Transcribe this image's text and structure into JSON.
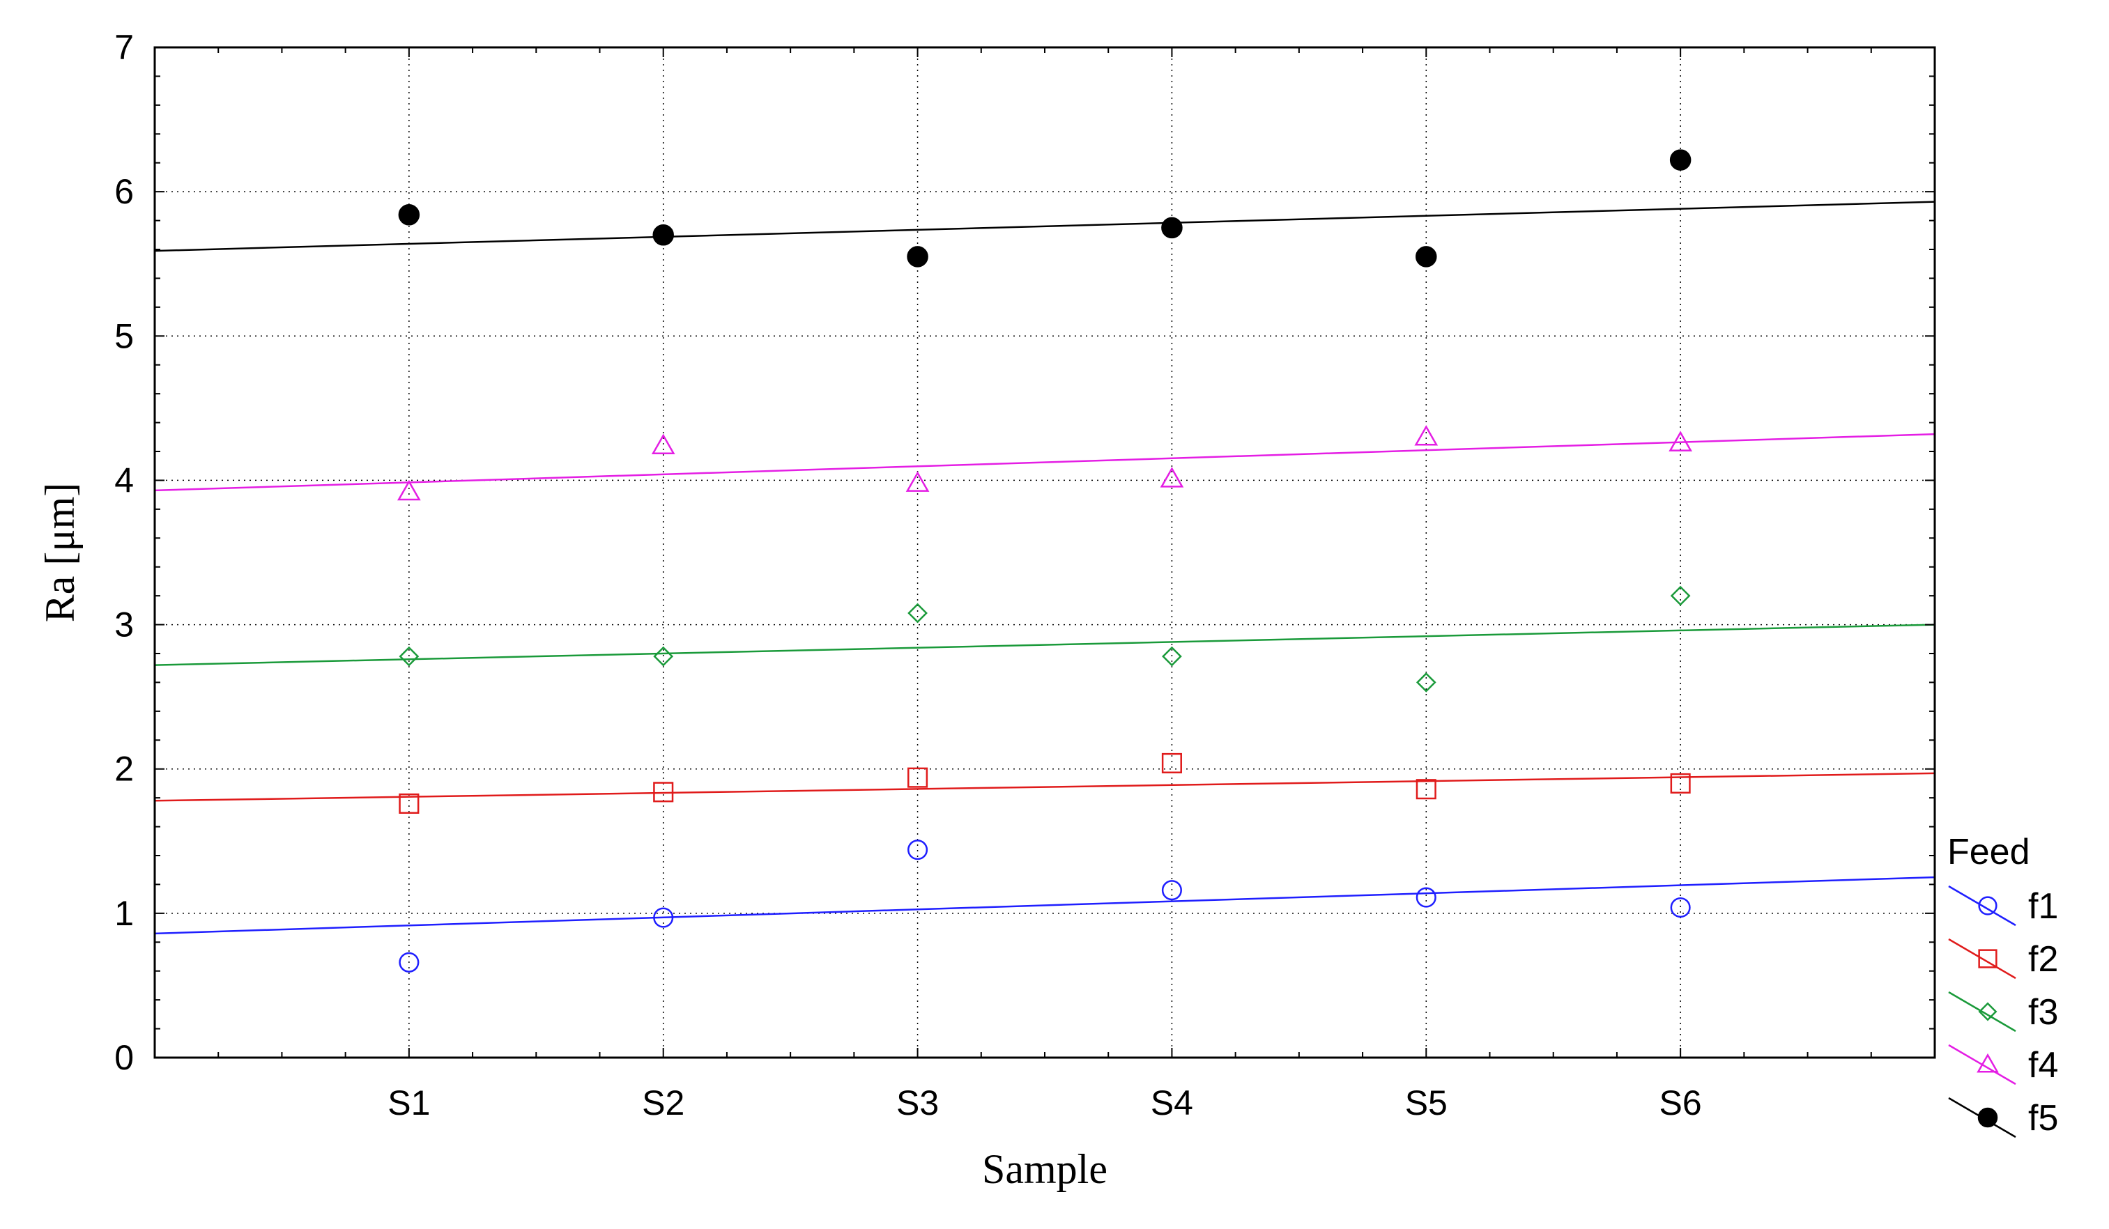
{
  "chart_data": {
    "type": "scatter",
    "title": "",
    "xlabel": "Sample",
    "ylabel": "Ra [μm]",
    "categories": [
      "S1",
      "S2",
      "S3",
      "S4",
      "S5",
      "S6"
    ],
    "ylim": [
      0,
      7
    ],
    "yticks": [
      "0",
      "1",
      "2",
      "3",
      "4",
      "5",
      "6",
      "7"
    ],
    "grid": "dotted",
    "legend_title": "Feed",
    "legend_position": "right",
    "series": [
      {
        "name": "f1",
        "color": "#1f1fff",
        "marker": "circle-open",
        "values": [
          0.66,
          0.97,
          1.44,
          1.16,
          1.11,
          1.04
        ],
        "fit": [
          0.86,
          1.25
        ]
      },
      {
        "name": "f2",
        "color": "#e01b1b",
        "marker": "square-open",
        "values": [
          1.76,
          1.84,
          1.94,
          2.04,
          1.86,
          1.9
        ],
        "fit": [
          1.78,
          1.97
        ]
      },
      {
        "name": "f3",
        "color": "#1a9a3a",
        "marker": "diamond-open",
        "values": [
          2.78,
          2.78,
          3.08,
          2.78,
          2.6,
          3.2
        ],
        "fit": [
          2.72,
          3.0
        ]
      },
      {
        "name": "f4",
        "color": "#e41ee4",
        "marker": "triangle-open",
        "values": [
          3.92,
          4.24,
          3.98,
          4.01,
          4.3,
          4.26
        ],
        "fit": [
          3.93,
          4.32
        ]
      },
      {
        "name": "f5",
        "color": "#000000",
        "marker": "circle-filled",
        "values": [
          5.84,
          5.7,
          5.55,
          5.75,
          5.55,
          6.22
        ],
        "fit": [
          5.59,
          5.93
        ]
      }
    ]
  }
}
